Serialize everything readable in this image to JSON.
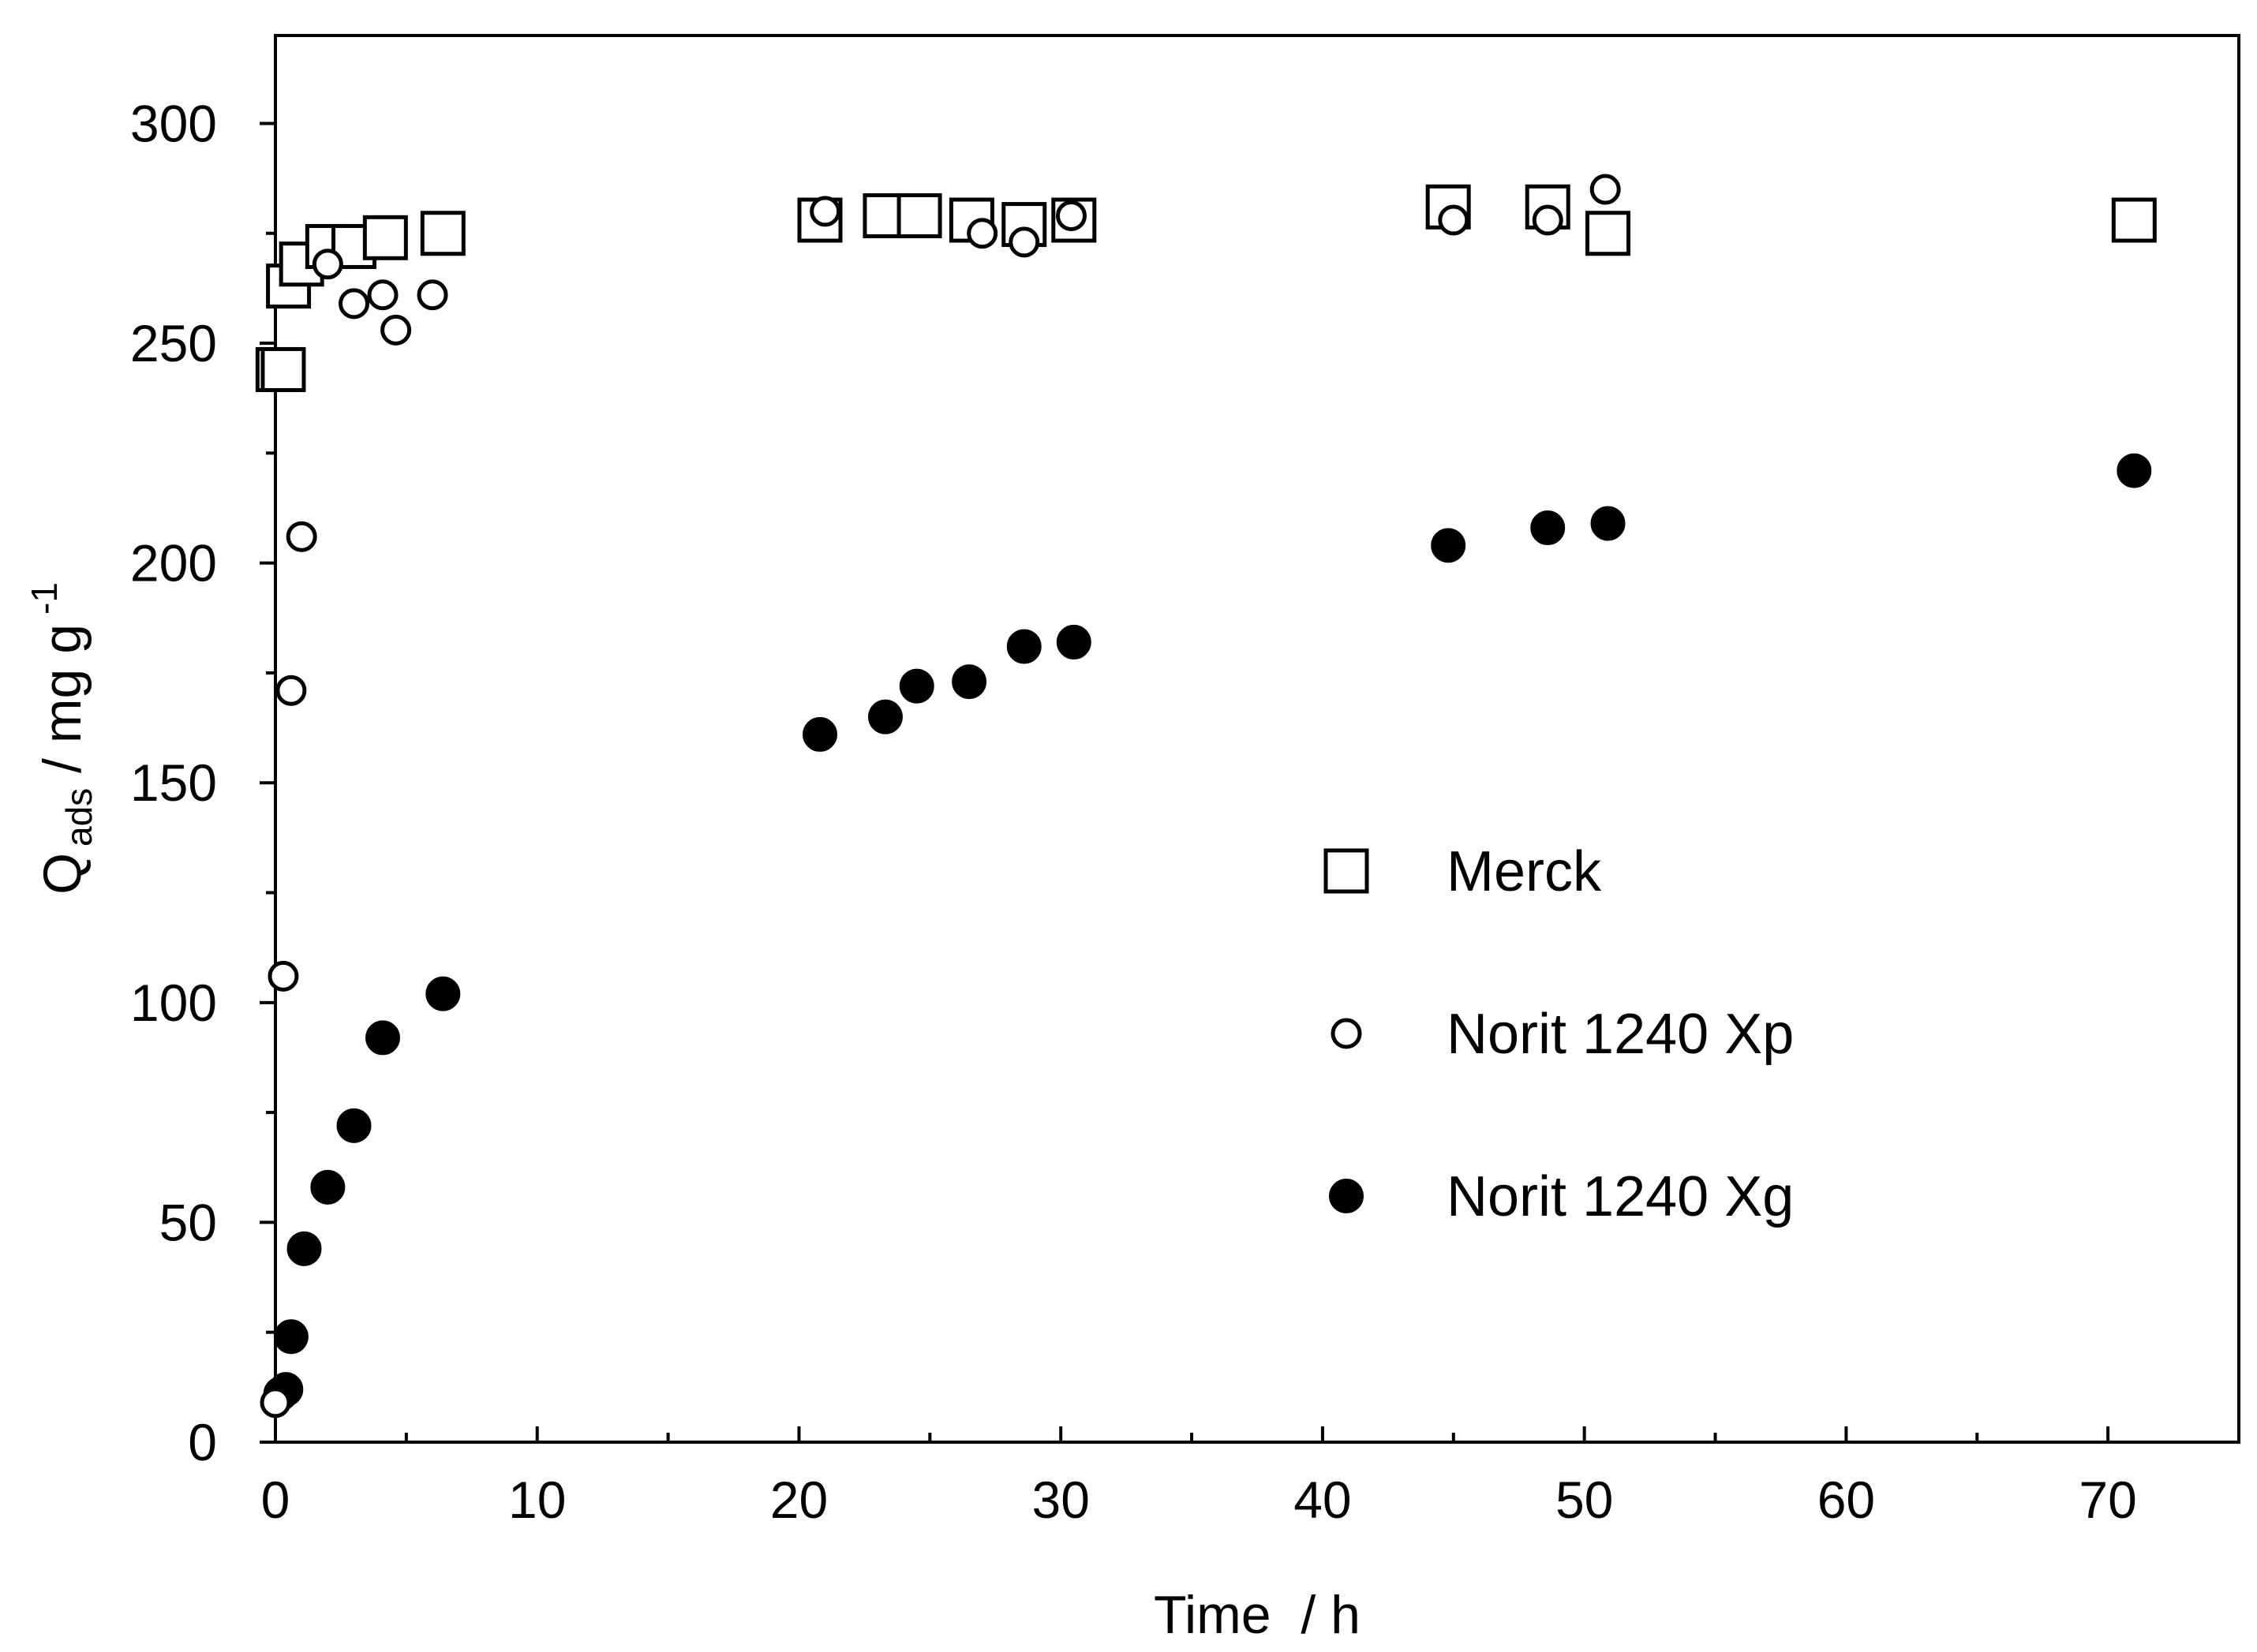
{
  "chart_data": {
    "type": "scatter",
    "xlabel": "Time  / h",
    "ylabel": {
      "base": "Q",
      "subscript": "ads",
      "rest": " / mg g",
      "superscript": "-1"
    },
    "xlim": [
      0,
      75
    ],
    "ylim": [
      0,
      320
    ],
    "x_ticks": [
      0,
      10,
      20,
      30,
      40,
      50,
      60,
      70
    ],
    "y_ticks": [
      0,
      50,
      100,
      150,
      200,
      250,
      300
    ],
    "x_minor_step": 5,
    "y_minor_step": 25,
    "grid": false,
    "legend_position": "right-middle",
    "series": [
      {
        "name": "Merck",
        "marker": "open-square",
        "color": "#000000",
        "points": [
          {
            "x": 0.1,
            "y": 244
          },
          {
            "x": 0.3,
            "y": 244
          },
          {
            "x": 0.5,
            "y": 263
          },
          {
            "x": 1.0,
            "y": 268
          },
          {
            "x": 2.0,
            "y": 272
          },
          {
            "x": 3.0,
            "y": 272
          },
          {
            "x": 4.2,
            "y": 274
          },
          {
            "x": 6.4,
            "y": 275
          },
          {
            "x": 20.8,
            "y": 278
          },
          {
            "x": 23.3,
            "y": 279
          },
          {
            "x": 24.6,
            "y": 279
          },
          {
            "x": 26.6,
            "y": 278
          },
          {
            "x": 28.6,
            "y": 277
          },
          {
            "x": 30.5,
            "y": 278
          },
          {
            "x": 44.8,
            "y": 281
          },
          {
            "x": 48.6,
            "y": 281
          },
          {
            "x": 50.9,
            "y": 275
          },
          {
            "x": 71.0,
            "y": 278
          }
        ]
      },
      {
        "name": "Norit 1240 Xp",
        "marker": "open-circle",
        "color": "#000000",
        "points": [
          {
            "x": 0.0,
            "y": 9
          },
          {
            "x": 0.3,
            "y": 106
          },
          {
            "x": 0.6,
            "y": 171
          },
          {
            "x": 1.0,
            "y": 206
          },
          {
            "x": 2.0,
            "y": 268
          },
          {
            "x": 3.0,
            "y": 259
          },
          {
            "x": 4.1,
            "y": 261
          },
          {
            "x": 4.6,
            "y": 253
          },
          {
            "x": 6.0,
            "y": 261
          },
          {
            "x": 21.0,
            "y": 280
          },
          {
            "x": 27.0,
            "y": 275
          },
          {
            "x": 28.6,
            "y": 273
          },
          {
            "x": 30.4,
            "y": 279
          },
          {
            "x": 45.0,
            "y": 278
          },
          {
            "x": 48.6,
            "y": 278
          },
          {
            "x": 50.8,
            "y": 285
          }
        ]
      },
      {
        "name": "Norit 1240 Xg",
        "marker": "filled-circle",
        "color": "#000000",
        "points": [
          {
            "x": 0.2,
            "y": 11
          },
          {
            "x": 0.4,
            "y": 12
          },
          {
            "x": 0.6,
            "y": 24
          },
          {
            "x": 1.1,
            "y": 44
          },
          {
            "x": 2.0,
            "y": 58
          },
          {
            "x": 3.0,
            "y": 72
          },
          {
            "x": 4.1,
            "y": 92
          },
          {
            "x": 6.4,
            "y": 102
          },
          {
            "x": 20.8,
            "y": 161
          },
          {
            "x": 23.3,
            "y": 165
          },
          {
            "x": 24.5,
            "y": 172
          },
          {
            "x": 26.5,
            "y": 173
          },
          {
            "x": 28.6,
            "y": 181
          },
          {
            "x": 30.5,
            "y": 182
          },
          {
            "x": 44.8,
            "y": 204
          },
          {
            "x": 48.6,
            "y": 208
          },
          {
            "x": 50.9,
            "y": 209
          },
          {
            "x": 71.0,
            "y": 221
          }
        ]
      }
    ]
  }
}
